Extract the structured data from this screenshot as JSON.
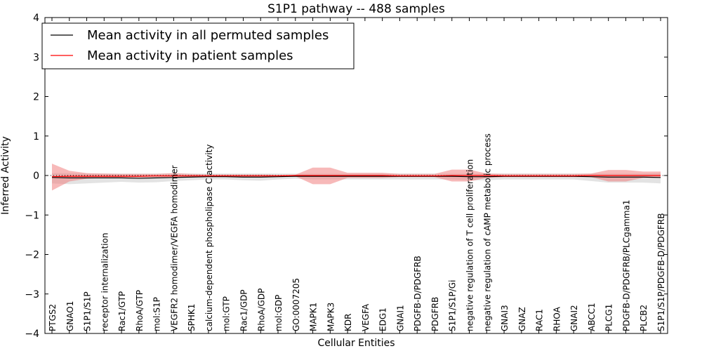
{
  "chart_data": {
    "type": "line",
    "title": "S1P1 pathway -- 488 samples",
    "xlabel": "Cellular Entities",
    "ylabel": "Inferred Activity",
    "ylim": [
      -4,
      4
    ],
    "yticks": [
      -4,
      -3,
      -2,
      -1,
      0,
      1,
      2,
      3,
      4
    ],
    "ytick_labels": [
      "−4",
      "−3",
      "−2",
      "−1",
      "0",
      "1",
      "2",
      "3",
      "4"
    ],
    "legend_position": "top-left",
    "categories": [
      "PTGS2",
      "GNAO1",
      "S1P1/S1P",
      "receptor internalization",
      "Rac1/GTP",
      "RhoA/GTP",
      "mol:S1P",
      "VEGFR2 homodimer/VEGFA homodimer",
      "SPHK1",
      "calcium-dependent phospholipase C activity",
      "mol:GTP",
      "Rac1/GDP",
      "RhoA/GDP",
      "mol:GDP",
      "GO:0007205",
      "MAPK1",
      "MAPK3",
      "KDR",
      "VEGFA",
      "EDG1",
      "GNAI1",
      "PDGFB-D/PDGFRB",
      "PDGFRB",
      "S1P1/S1P/Gi",
      "negative regulation of T cell proliferation",
      "negative regulation of cAMP metabolic process",
      "GNAI3",
      "GNAZ",
      "RAC1",
      "RHOA",
      "GNAI2",
      "ABCC1",
      "PLCG1",
      "PDGFB-D/PDGFRB/PLCgamma1",
      "PLCB2",
      "S1P1/S1P/PDGFB-D/PDGFRB"
    ],
    "series": [
      {
        "name": "Mean activity in all permuted samples",
        "color": "#000000",
        "values": [
          -0.05,
          -0.06,
          -0.06,
          -0.06,
          -0.06,
          -0.07,
          -0.06,
          -0.05,
          -0.04,
          -0.03,
          -0.03,
          -0.04,
          -0.04,
          -0.03,
          -0.02,
          -0.02,
          -0.02,
          -0.02,
          -0.02,
          -0.02,
          -0.02,
          -0.02,
          -0.02,
          -0.02,
          -0.03,
          -0.03,
          -0.02,
          -0.02,
          -0.02,
          -0.02,
          -0.02,
          -0.03,
          -0.04,
          -0.04,
          -0.04,
          -0.05
        ],
        "lower": [
          -0.2,
          -0.22,
          -0.2,
          -0.18,
          -0.16,
          -0.18,
          -0.17,
          -0.14,
          -0.12,
          -0.1,
          -0.1,
          -0.12,
          -0.13,
          -0.1,
          -0.08,
          -0.1,
          -0.1,
          -0.1,
          -0.1,
          -0.1,
          -0.1,
          -0.1,
          -0.1,
          -0.1,
          -0.12,
          -0.12,
          -0.1,
          -0.1,
          -0.1,
          -0.1,
          -0.1,
          -0.14,
          -0.18,
          -0.18,
          -0.18,
          -0.2
        ],
        "upper": [
          0.06,
          0.06,
          0.05,
          0.05,
          0.05,
          0.05,
          0.05,
          0.05,
          0.05,
          0.05,
          0.05,
          0.05,
          0.05,
          0.05,
          0.05,
          0.05,
          0.05,
          0.05,
          0.05,
          0.05,
          0.05,
          0.05,
          0.05,
          0.05,
          0.05,
          0.05,
          0.05,
          0.05,
          0.05,
          0.05,
          0.05,
          0.05,
          0.05,
          0.05,
          0.05,
          0.06
        ]
      },
      {
        "name": "Mean activity in patient samples",
        "color": "#ff0000",
        "band_color": "#f08080",
        "values": [
          -0.03,
          -0.02,
          -0.02,
          -0.02,
          -0.02,
          -0.02,
          -0.01,
          -0.01,
          -0.01,
          -0.01,
          -0.01,
          -0.01,
          -0.01,
          -0.01,
          0.0,
          0.0,
          0.0,
          0.0,
          0.0,
          0.0,
          -0.01,
          -0.01,
          -0.01,
          0.0,
          0.0,
          0.0,
          -0.01,
          -0.01,
          -0.01,
          -0.01,
          -0.01,
          0.0,
          0.0,
          0.0,
          0.0,
          0.0
        ],
        "lower": [
          -0.38,
          -0.15,
          -0.08,
          -0.06,
          -0.05,
          -0.05,
          -0.04,
          -0.05,
          -0.04,
          -0.03,
          -0.03,
          -0.03,
          -0.03,
          -0.02,
          -0.02,
          -0.22,
          -0.22,
          -0.06,
          -0.06,
          -0.06,
          -0.04,
          -0.04,
          -0.04,
          -0.15,
          -0.15,
          -0.06,
          -0.04,
          -0.04,
          -0.04,
          -0.04,
          -0.04,
          -0.04,
          -0.15,
          -0.15,
          -0.06,
          -0.06
        ],
        "upper": [
          0.3,
          0.12,
          0.06,
          0.05,
          0.04,
          0.04,
          0.04,
          0.06,
          0.04,
          0.03,
          0.03,
          0.03,
          0.03,
          0.02,
          0.02,
          0.2,
          0.2,
          0.07,
          0.07,
          0.07,
          0.04,
          0.04,
          0.04,
          0.15,
          0.15,
          0.05,
          0.04,
          0.04,
          0.04,
          0.04,
          0.04,
          0.05,
          0.14,
          0.14,
          0.1,
          0.1
        ]
      }
    ]
  }
}
